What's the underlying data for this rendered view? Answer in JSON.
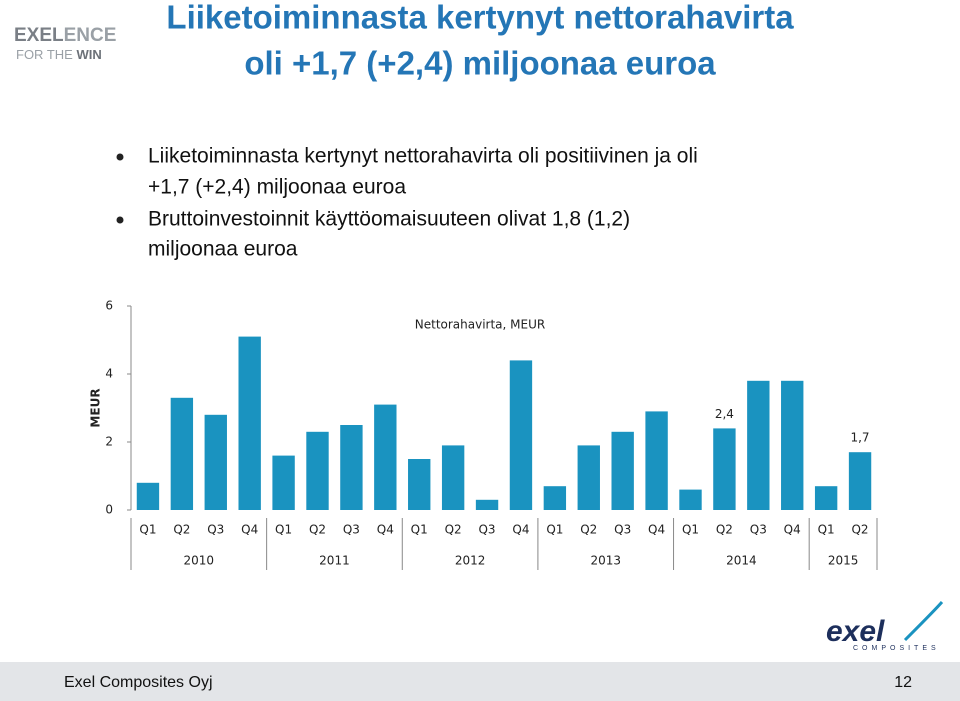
{
  "logo": {
    "top_a": "EXEL",
    "top_b": "ENCE",
    "bottom_a": "FOR THE",
    "bottom_b": "WIN"
  },
  "title": [
    "Liiketoiminnasta kertynyt nettorahavirta",
    "oli +1,7 (+2,4) miljoonaa euroa"
  ],
  "bullets": [
    [
      "Liiketoiminnasta kertynyt nettorahavirta oli positiivinen ja oli",
      "+1,7 (+2,4) miljoonaa euroa"
    ],
    [
      "Bruttoinvestoinnit käyttöomaisuuteen olivat 1,8 (1,2)",
      "miljoonaa euroa"
    ]
  ],
  "chart_data": {
    "type": "bar",
    "title": "Nettorahavirta, MEUR",
    "y_label": "MEUR",
    "category_groups": [
      {
        "name": "2010",
        "categories": [
          "Q1",
          "Q2",
          "Q3",
          "Q4"
        ]
      },
      {
        "name": "2011",
        "categories": [
          "Q1",
          "Q2",
          "Q3",
          "Q4"
        ]
      },
      {
        "name": "2012",
        "categories": [
          "Q1",
          "Q2",
          "Q3",
          "Q4"
        ]
      },
      {
        "name": "2013",
        "categories": [
          "Q1",
          "Q2",
          "Q3",
          "Q4"
        ]
      },
      {
        "name": "2014",
        "categories": [
          "Q1",
          "Q2",
          "Q3",
          "Q4"
        ]
      },
      {
        "name": "2015",
        "categories": [
          "Q1",
          "Q2"
        ]
      }
    ],
    "values": [
      0.8,
      3.3,
      2.8,
      5.1,
      1.6,
      2.3,
      2.5,
      3.1,
      1.5,
      1.9,
      0.3,
      4.4,
      0.7,
      1.9,
      2.3,
      2.9,
      0.6,
      2.4,
      3.8,
      3.8,
      0.7,
      1.7
    ],
    "value_labels": [
      null,
      null,
      null,
      null,
      null,
      null,
      null,
      null,
      null,
      null,
      null,
      null,
      null,
      null,
      null,
      null,
      null,
      "2,4",
      null,
      null,
      null,
      "1,7"
    ],
    "color": "#1a93c0",
    "ylim": [
      0,
      6
    ],
    "yticks": [
      0,
      2,
      4,
      6
    ],
    "grid": false
  },
  "brand": {
    "name": "exel",
    "sub": "COMPOSITES"
  },
  "footer": {
    "company": "Exel Composites Oyj",
    "page": "12"
  }
}
